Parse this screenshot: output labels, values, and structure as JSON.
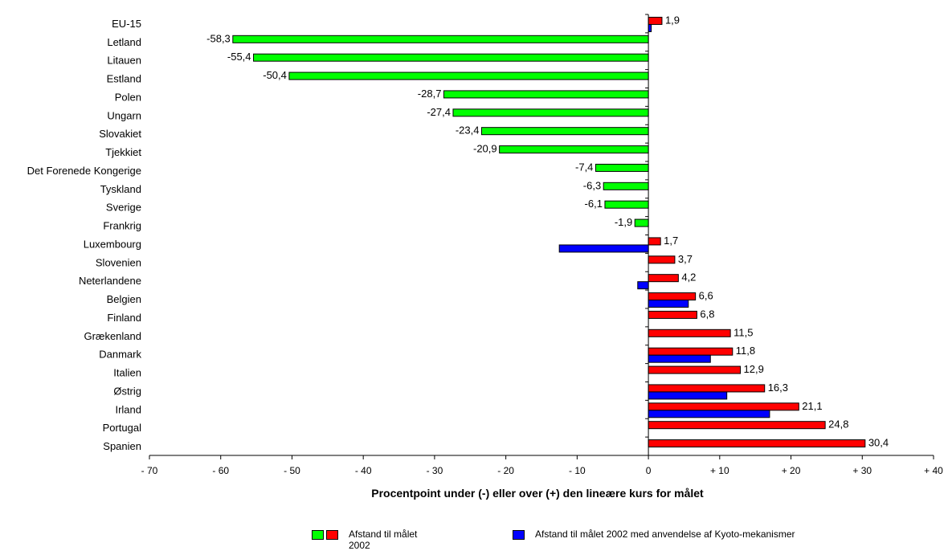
{
  "chart_data": {
    "type": "bar",
    "orientation": "horizontal",
    "xlabel": "Procentpoint under (-) eller over (+) den lineære kurs for målet",
    "xlim": [
      -70,
      40
    ],
    "xticks": [
      {
        "value": -70,
        "label": "- 70"
      },
      {
        "value": -60,
        "label": "- 60"
      },
      {
        "value": -50,
        "label": "- 50"
      },
      {
        "value": -40,
        "label": "- 40"
      },
      {
        "value": -30,
        "label": "- 30"
      },
      {
        "value": -20,
        "label": "- 20"
      },
      {
        "value": -10,
        "label": "- 10"
      },
      {
        "value": 0,
        "label": "0"
      },
      {
        "value": 10,
        "label": "+ 10"
      },
      {
        "value": 20,
        "label": "+ 20"
      },
      {
        "value": 30,
        "label": "+ 30"
      },
      {
        "value": 40,
        "label": "+ 40"
      }
    ],
    "categories": [
      "EU-15",
      "Letland",
      "Litauen",
      "Estland",
      "Polen",
      "Ungarn",
      "Slovakiet",
      "Tjekkiet",
      "Det Forenede Kongerige",
      "Tyskland",
      "Sverige",
      "Frankrig",
      "Luxembourg",
      "Slovenien",
      "Neterlandene",
      "Belgien",
      "Finland",
      "Grækenland",
      "Danmark",
      "Italien",
      "Østrig",
      "Irland",
      "Portugal",
      "Spanien"
    ],
    "series": [
      {
        "name": "Afstand til målet 2002",
        "values": [
          1.9,
          -58.3,
          -55.4,
          -50.4,
          -28.7,
          -27.4,
          -23.4,
          -20.9,
          -7.4,
          -6.3,
          -6.1,
          -1.9,
          1.7,
          3.7,
          4.2,
          6.6,
          6.8,
          11.5,
          11.8,
          12.9,
          16.3,
          21.1,
          24.8,
          30.4
        ],
        "labels": [
          "1,9",
          "-58,3",
          "-55,4",
          "-50,4",
          "-28,7",
          "-27,4",
          "-23,4",
          "-20,9",
          "-7,4",
          "-6,3",
          "-6,1",
          "-1,9",
          "1,7",
          "3,7",
          "4,2",
          "6,6",
          "6,8",
          "11,5",
          "11,8",
          "12,9",
          "16,3",
          "21,1",
          "24,8",
          "30,4"
        ],
        "color_negative": "#00ff00",
        "color_positive": "#ff0000"
      },
      {
        "name": "Afstand til målet 2002 med anvendelse af Kyoto-mekanismer",
        "values": [
          0.4,
          null,
          null,
          null,
          null,
          null,
          null,
          null,
          null,
          null,
          null,
          null,
          -12.5,
          null,
          -1.5,
          5.6,
          null,
          null,
          8.7,
          null,
          11.0,
          17.0,
          null,
          null
        ],
        "color": "#0000ff"
      }
    ],
    "grid": false,
    "legend_position": "bottom"
  },
  "legend": {
    "item1_line1": "Afstand til målet",
    "item1_line2": "2002",
    "item2": "Afstand til målet 2002 med anvendelse af Kyoto-mekanismer",
    "swatch_green": "#00ff00",
    "swatch_red": "#ff0000",
    "swatch_blue": "#0000ff"
  }
}
